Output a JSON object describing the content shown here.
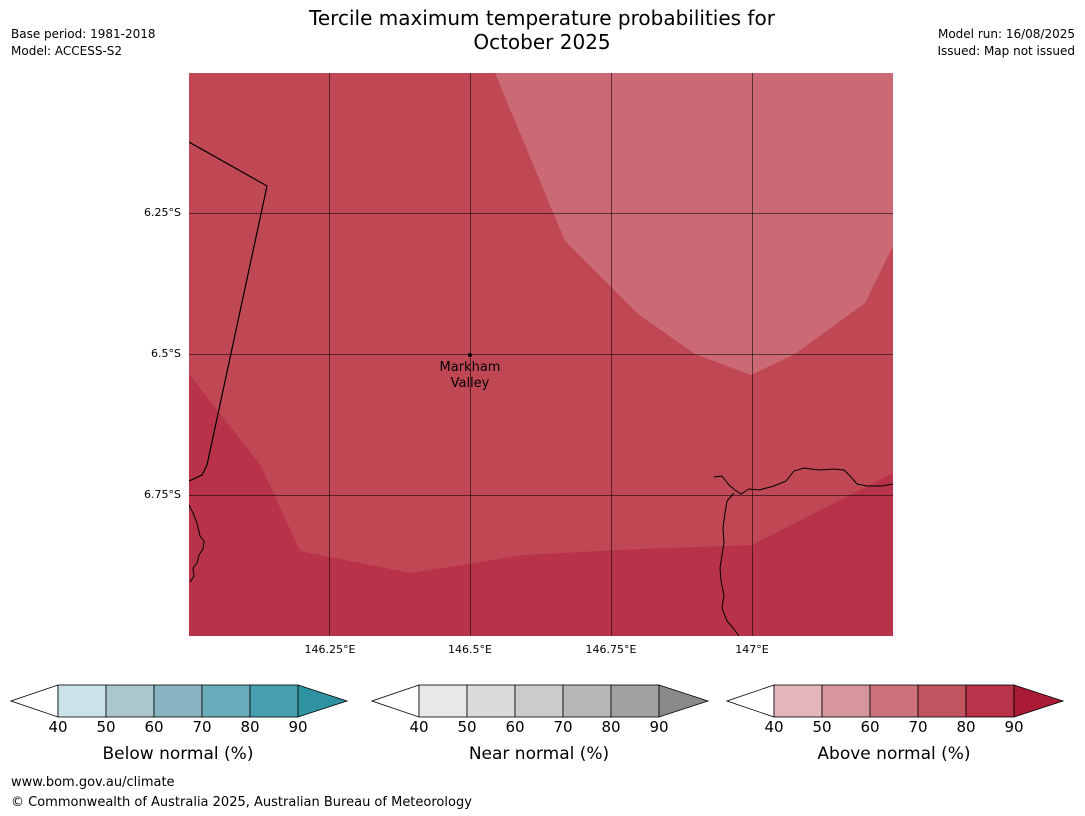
{
  "header": {
    "base_period": "Base period: 1981-2018",
    "model": "Model: ACCESS-S2",
    "title_line1": "Tercile maximum temperature probabilities for",
    "title_line2": "October 2025",
    "model_run": "Model run: 16/08/2025",
    "issued": "Issued: Map not issued"
  },
  "map": {
    "lat_labels": [
      "6.25°S",
      "6.5°S",
      "6.75°S"
    ],
    "lon_labels": [
      "146.25°E",
      "146.5°E",
      "146.75°E",
      "147°E"
    ],
    "place": {
      "line1": "Markham",
      "line2": "Valley"
    },
    "colors": {
      "band_60_70": "#cb6a74",
      "band_70_80": "#c04754",
      "band_80_90": "#b8334a"
    }
  },
  "colorbars": [
    {
      "name": "below",
      "title": "Below normal (%)",
      "ticks": [
        "40",
        "50",
        "60",
        "70",
        "80",
        "90"
      ],
      "colors": [
        "#cae2e8",
        "#a9c7cd",
        "#88b4c1",
        "#6aacbb",
        "#47a0b0"
      ],
      "extend_color": "#2f92a1"
    },
    {
      "name": "near",
      "title": "Near normal (%)",
      "ticks": [
        "40",
        "50",
        "60",
        "70",
        "80",
        "90"
      ],
      "colors": [
        "#e8e8e8",
        "#dadada",
        "#cbcbcb",
        "#b7b7b7",
        "#a2a2a2"
      ],
      "extend_color": "#898989"
    },
    {
      "name": "above",
      "title": "Above normal (%)",
      "ticks": [
        "40",
        "50",
        "60",
        "70",
        "80",
        "90"
      ],
      "colors": [
        "#e3b6bc",
        "#d7959d",
        "#cc737b",
        "#c05560",
        "#b9344a"
      ],
      "extend_color": "#aa1b38"
    }
  ],
  "footer": {
    "url": "www.bom.gov.au/climate",
    "copyright": "© Commonwealth of Australia 2025, Australian Bureau of Meteorology"
  }
}
